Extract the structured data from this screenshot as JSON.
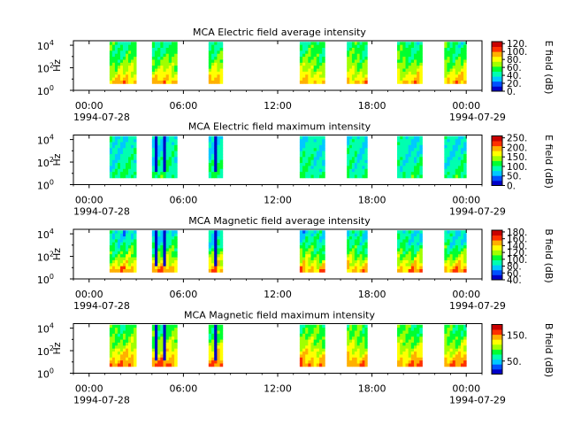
{
  "figure": {
    "xticks": [
      "00:00",
      "06:00",
      "12:00",
      "18:00",
      "00:00"
    ],
    "xtick_hours": [
      0,
      6,
      12,
      18,
      24
    ],
    "xrange_hours": [
      -1,
      25
    ],
    "date_start": "1994-07-28",
    "date_end": "1994-07-29",
    "ylabel": "Hz",
    "ytick_exponents": [
      0,
      2,
      4
    ],
    "yrange_exponent": [
      0,
      4.4
    ],
    "colormap": [
      "#0000c8",
      "#0050ff",
      "#00c8ff",
      "#00ffb0",
      "#00ff30",
      "#a0ff00",
      "#ffff00",
      "#ffb000",
      "#ff3000",
      "#c80000"
    ]
  },
  "chart_data": [
    {
      "type": "heatmap",
      "title": "MCA  Electric field average intensity",
      "ylabel": "Hz",
      "colorbar_label": "E field (dB)",
      "colorbar_ticks": [
        "0.",
        "20.",
        "40.",
        "60.",
        "80.",
        "100.",
        "120."
      ],
      "colorbar_values": [
        0,
        20,
        40,
        60,
        80,
        100,
        120
      ],
      "colorbar_range": [
        0,
        125
      ],
      "segments_hours": [
        [
          1.3,
          3.0
        ],
        [
          4.0,
          5.6
        ],
        [
          7.6,
          8.5
        ],
        [
          13.4,
          15.0
        ],
        [
          16.4,
          17.7
        ],
        [
          19.6,
          21.2
        ],
        [
          22.6,
          24.0
        ]
      ],
      "typical_level": 55,
      "low_freq_level": 90,
      "high_freq_level": 50
    },
    {
      "type": "heatmap",
      "title": "MCA  Electric field maximum intensity",
      "ylabel": "Hz",
      "colorbar_label": "E field (dB)",
      "colorbar_ticks": [
        "0.",
        "50.",
        "100.",
        "150.",
        "200.",
        "250."
      ],
      "colorbar_values": [
        0,
        50,
        100,
        150,
        200,
        250
      ],
      "colorbar_range": [
        0,
        260
      ],
      "segments_hours": [
        [
          1.3,
          3.0
        ],
        [
          4.0,
          5.6
        ],
        [
          7.6,
          8.5
        ],
        [
          13.4,
          15.0
        ],
        [
          16.4,
          17.7
        ],
        [
          19.6,
          21.2
        ],
        [
          22.6,
          24.0
        ]
      ],
      "typical_level": 95,
      "low_freq_level": 105,
      "high_freq_level": 80
    },
    {
      "type": "heatmap",
      "title": "MCA  Magnetic field average intensity",
      "ylabel": "Hz",
      "colorbar_label": "B field (dB)",
      "colorbar_ticks": [
        "40.",
        "60.",
        "80.",
        "100.",
        "120.",
        "140.",
        "160.",
        "180."
      ],
      "colorbar_values": [
        40,
        60,
        80,
        100,
        120,
        140,
        160,
        180
      ],
      "colorbar_range": [
        40,
        185
      ],
      "segments_hours": [
        [
          1.3,
          3.0
        ],
        [
          4.0,
          5.6
        ],
        [
          7.6,
          8.5
        ],
        [
          13.4,
          15.0
        ],
        [
          16.4,
          17.7
        ],
        [
          19.6,
          21.2
        ],
        [
          22.6,
          24.0
        ]
      ],
      "typical_level": 105,
      "low_freq_level": 150,
      "high_freq_level": 85
    },
    {
      "type": "heatmap",
      "title": "MCA  Magnetic field maximum intensity",
      "ylabel": "Hz",
      "colorbar_label": "B field (dB)",
      "colorbar_ticks": [
        "50.",
        "150."
      ],
      "colorbar_values": [
        50,
        150
      ],
      "colorbar_range": [
        0,
        190
      ],
      "segments_hours": [
        [
          1.3,
          3.0
        ],
        [
          4.0,
          5.6
        ],
        [
          7.6,
          8.5
        ],
        [
          13.4,
          15.0
        ],
        [
          16.4,
          17.7
        ],
        [
          19.6,
          21.2
        ],
        [
          22.6,
          24.0
        ]
      ],
      "typical_level": 110,
      "low_freq_level": 150,
      "high_freq_level": 85
    }
  ]
}
